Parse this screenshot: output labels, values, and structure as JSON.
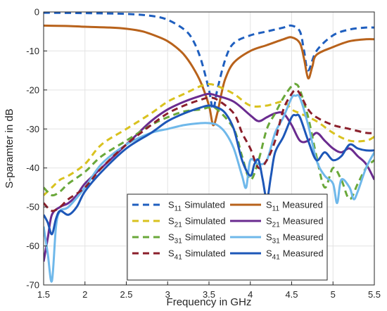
{
  "chart_data": {
    "type": "line",
    "title": "",
    "xlabel": "Frequency in GHz",
    "ylabel": "S-paramter in dB",
    "xlim": [
      1.5,
      5.5
    ],
    "ylim": [
      -70,
      0
    ],
    "xticks": [
      "1.5",
      "2",
      "2.5",
      "3",
      "3.5",
      "4",
      "4.5",
      "5",
      "5.5"
    ],
    "yticks": [
      "0",
      "-10",
      "-20",
      "-30",
      "-40",
      "-50",
      "-60",
      "-70"
    ],
    "grid": true,
    "legend_placement": "lower-right",
    "series": [
      {
        "name": "S11 Simulated",
        "label_main": "S",
        "label_sub": "11",
        "label_tail": "Simulated",
        "color": "#1f5fbf",
        "dash": true,
        "x": [
          1.5,
          2.0,
          2.5,
          2.8,
          3.0,
          3.2,
          3.3,
          3.4,
          3.5,
          3.55,
          3.6,
          3.7,
          3.8,
          4.0,
          4.2,
          4.4,
          4.5,
          4.6,
          4.65,
          4.7,
          4.8,
          5.0,
          5.2,
          5.4,
          5.5
        ],
        "y": [
          -0.2,
          -0.3,
          -0.5,
          -1.0,
          -2.0,
          -4.5,
          -7.0,
          -12.0,
          -20.0,
          -25.0,
          -20.0,
          -12.0,
          -8.0,
          -6.0,
          -5.0,
          -4.0,
          -3.5,
          -5.0,
          -10.0,
          -15.0,
          -10.0,
          -6.0,
          -4.5,
          -4.0,
          -4.0
        ]
      },
      {
        "name": "S11 Measured",
        "label_main": "S",
        "label_sub": "11",
        "label_tail": "Measured",
        "color": "#b8621b",
        "dash": false,
        "x": [
          1.5,
          1.8,
          2.0,
          2.3,
          2.5,
          2.7,
          2.9,
          3.0,
          3.1,
          3.2,
          3.3,
          3.4,
          3.5,
          3.55,
          3.6,
          3.65,
          3.7,
          3.8,
          4.0,
          4.2,
          4.4,
          4.5,
          4.6,
          4.65,
          4.7,
          4.75,
          4.8,
          5.0,
          5.2,
          5.4,
          5.5
        ],
        "y": [
          -3.5,
          -3.6,
          -3.8,
          -4.0,
          -4.3,
          -5.0,
          -6.5,
          -7.5,
          -9.0,
          -11.0,
          -14.0,
          -18.0,
          -24.0,
          -29.0,
          -26.0,
          -21.0,
          -17.0,
          -13.0,
          -10.0,
          -8.5,
          -7.0,
          -6.5,
          -8.0,
          -12.0,
          -17.0,
          -14.0,
          -11.0,
          -9.0,
          -7.5,
          -7.0,
          -7.0
        ]
      },
      {
        "name": "S21 Simulated",
        "label_main": "S",
        "label_sub": "21",
        "label_tail": "Simulated",
        "color": "#d9c21f",
        "dash": true,
        "x": [
          1.5,
          1.6,
          1.7,
          1.8,
          2.0,
          2.2,
          2.5,
          2.8,
          3.0,
          3.2,
          3.4,
          3.5,
          3.6,
          3.8,
          4.0,
          4.2,
          4.4,
          4.5,
          4.6,
          4.8,
          5.0,
          5.2,
          5.4,
          5.5
        ],
        "y": [
          -47.0,
          -45.0,
          -43.0,
          -42.0,
          -39.0,
          -34.0,
          -30.0,
          -26.0,
          -23.0,
          -21.0,
          -19.0,
          -18.5,
          -19.0,
          -21.0,
          -24.0,
          -24.0,
          -23.0,
          -25.0,
          -26.0,
          -28.0,
          -31.0,
          -33.0,
          -33.0,
          -32.0
        ]
      },
      {
        "name": "S21 Measured",
        "label_main": "S",
        "label_sub": "21",
        "label_tail": "Measured",
        "color": "#6a2b8f",
        "dash": false,
        "x": [
          1.5,
          1.55,
          1.6,
          1.7,
          1.8,
          1.9,
          2.0,
          2.2,
          2.4,
          2.6,
          2.8,
          3.0,
          3.2,
          3.4,
          3.5,
          3.6,
          3.8,
          4.0,
          4.1,
          4.2,
          4.3,
          4.4,
          4.5,
          4.6,
          4.7,
          4.8,
          4.9,
          5.0,
          5.1,
          5.2,
          5.3,
          5.4,
          5.5
        ],
        "y": [
          -64.0,
          -58.0,
          -52.0,
          -50.0,
          -49.0,
          -47.0,
          -44.0,
          -40.0,
          -36.0,
          -32.0,
          -28.0,
          -25.0,
          -23.0,
          -21.5,
          -21.0,
          -21.5,
          -23.0,
          -26.5,
          -28.0,
          -27.0,
          -26.0,
          -26.0,
          -29.0,
          -33.0,
          -33.0,
          -31.0,
          -33.0,
          -35.0,
          -36.0,
          -35.0,
          -37.0,
          -39.0,
          -43.0
        ]
      },
      {
        "name": "S31 Simulated",
        "label_main": "S",
        "label_sub": "31",
        "label_tail": "Simulated",
        "color": "#6aa83a",
        "dash": true,
        "x": [
          1.5,
          1.6,
          1.7,
          1.8,
          2.0,
          2.2,
          2.5,
          2.8,
          3.0,
          3.2,
          3.4,
          3.5,
          3.6,
          3.8,
          3.9,
          4.0,
          4.1,
          4.2,
          4.3,
          4.4,
          4.5,
          4.55,
          4.6,
          4.7,
          4.8,
          4.9,
          5.0,
          5.1,
          5.2,
          5.3,
          5.4,
          5.5
        ],
        "y": [
          -45.0,
          -47.0,
          -46.0,
          -44.0,
          -41.0,
          -37.0,
          -33.0,
          -29.0,
          -27.0,
          -25.5,
          -25.0,
          -24.5,
          -25.0,
          -30.0,
          -37.0,
          -43.0,
          -38.0,
          -30.0,
          -26.0,
          -22.0,
          -19.0,
          -18.5,
          -20.0,
          -27.0,
          -37.0,
          -45.0,
          -40.0,
          -43.0,
          -48.0,
          -44.0,
          -40.0,
          -38.0
        ]
      },
      {
        "name": "S31 Measured",
        "label_main": "S",
        "label_sub": "31",
        "label_tail": "Measured",
        "color": "#6fb8ea",
        "dash": false,
        "x": [
          1.5,
          1.55,
          1.6,
          1.65,
          1.7,
          1.8,
          2.0,
          2.2,
          2.5,
          2.8,
          3.0,
          3.2,
          3.4,
          3.5,
          3.6,
          3.7,
          3.8,
          3.9,
          3.95,
          4.0,
          4.1,
          4.2,
          4.3,
          4.4,
          4.5,
          4.55,
          4.6,
          4.7,
          4.8,
          4.9,
          5.0,
          5.05,
          5.1,
          5.2,
          5.25,
          5.3,
          5.4,
          5.5
        ],
        "y": [
          -55.0,
          -62.0,
          -69.0,
          -55.0,
          -51.0,
          -50.0,
          -45.0,
          -39.0,
          -34.0,
          -31.0,
          -30.0,
          -29.0,
          -28.5,
          -28.5,
          -29.0,
          -31.0,
          -35.0,
          -42.0,
          -45.0,
          -38.0,
          -39.0,
          -38.0,
          -31.0,
          -27.0,
          -22.0,
          -21.5,
          -22.0,
          -29.0,
          -38.0,
          -42.0,
          -44.0,
          -49.0,
          -43.0,
          -45.0,
          -48.0,
          -46.0,
          -40.0,
          -36.0
        ]
      },
      {
        "name": "S41 Simulated",
        "label_main": "S",
        "label_sub": "41",
        "label_tail": "Simulated",
        "color": "#8b1f2b",
        "dash": true,
        "x": [
          1.5,
          1.6,
          1.7,
          1.8,
          2.0,
          2.2,
          2.5,
          2.8,
          3.0,
          3.2,
          3.4,
          3.5,
          3.6,
          3.8,
          3.9,
          4.0,
          4.1,
          4.2,
          4.3,
          4.4,
          4.5,
          4.55,
          4.6,
          4.7,
          4.8,
          5.0,
          5.2,
          5.4,
          5.5
        ],
        "y": [
          -49.0,
          -51.0,
          -50.0,
          -48.0,
          -45.0,
          -40.0,
          -34.0,
          -29.0,
          -26.0,
          -24.0,
          -22.5,
          -22.0,
          -22.5,
          -26.0,
          -31.0,
          -35.0,
          -40.0,
          -38.0,
          -33.0,
          -25.0,
          -21.0,
          -20.0,
          -21.0,
          -25.0,
          -27.0,
          -29.0,
          -30.0,
          -31.0,
          -31.0
        ]
      },
      {
        "name": "S41 Measured",
        "label_main": "S",
        "label_sub": "41",
        "label_tail": "Measured",
        "color": "#1d57b8",
        "dash": false,
        "x": [
          1.5,
          1.55,
          1.6,
          1.65,
          1.7,
          1.8,
          1.9,
          2.0,
          2.2,
          2.5,
          2.8,
          3.0,
          3.2,
          3.4,
          3.5,
          3.6,
          3.7,
          3.8,
          3.9,
          4.0,
          4.05,
          4.1,
          4.15,
          4.2,
          4.25,
          4.3,
          4.4,
          4.5,
          4.55,
          4.6,
          4.7,
          4.8,
          4.9,
          5.0,
          5.1,
          5.2,
          5.3,
          5.4,
          5.5
        ],
        "y": [
          -52.0,
          -54.0,
          -57.0,
          -53.0,
          -51.0,
          -52.0,
          -50.0,
          -46.0,
          -41.0,
          -35.0,
          -31.0,
          -28.0,
          -26.0,
          -24.5,
          -24.0,
          -24.5,
          -26.0,
          -30.0,
          -38.0,
          -42.0,
          -39.0,
          -38.0,
          -43.0,
          -48.0,
          -42.0,
          -36.0,
          -32.0,
          -27.0,
          -26.5,
          -27.0,
          -33.0,
          -38.0,
          -36.0,
          -38.0,
          -37.0,
          -34.0,
          -35.0,
          -35.5,
          -35.5
        ]
      }
    ]
  }
}
